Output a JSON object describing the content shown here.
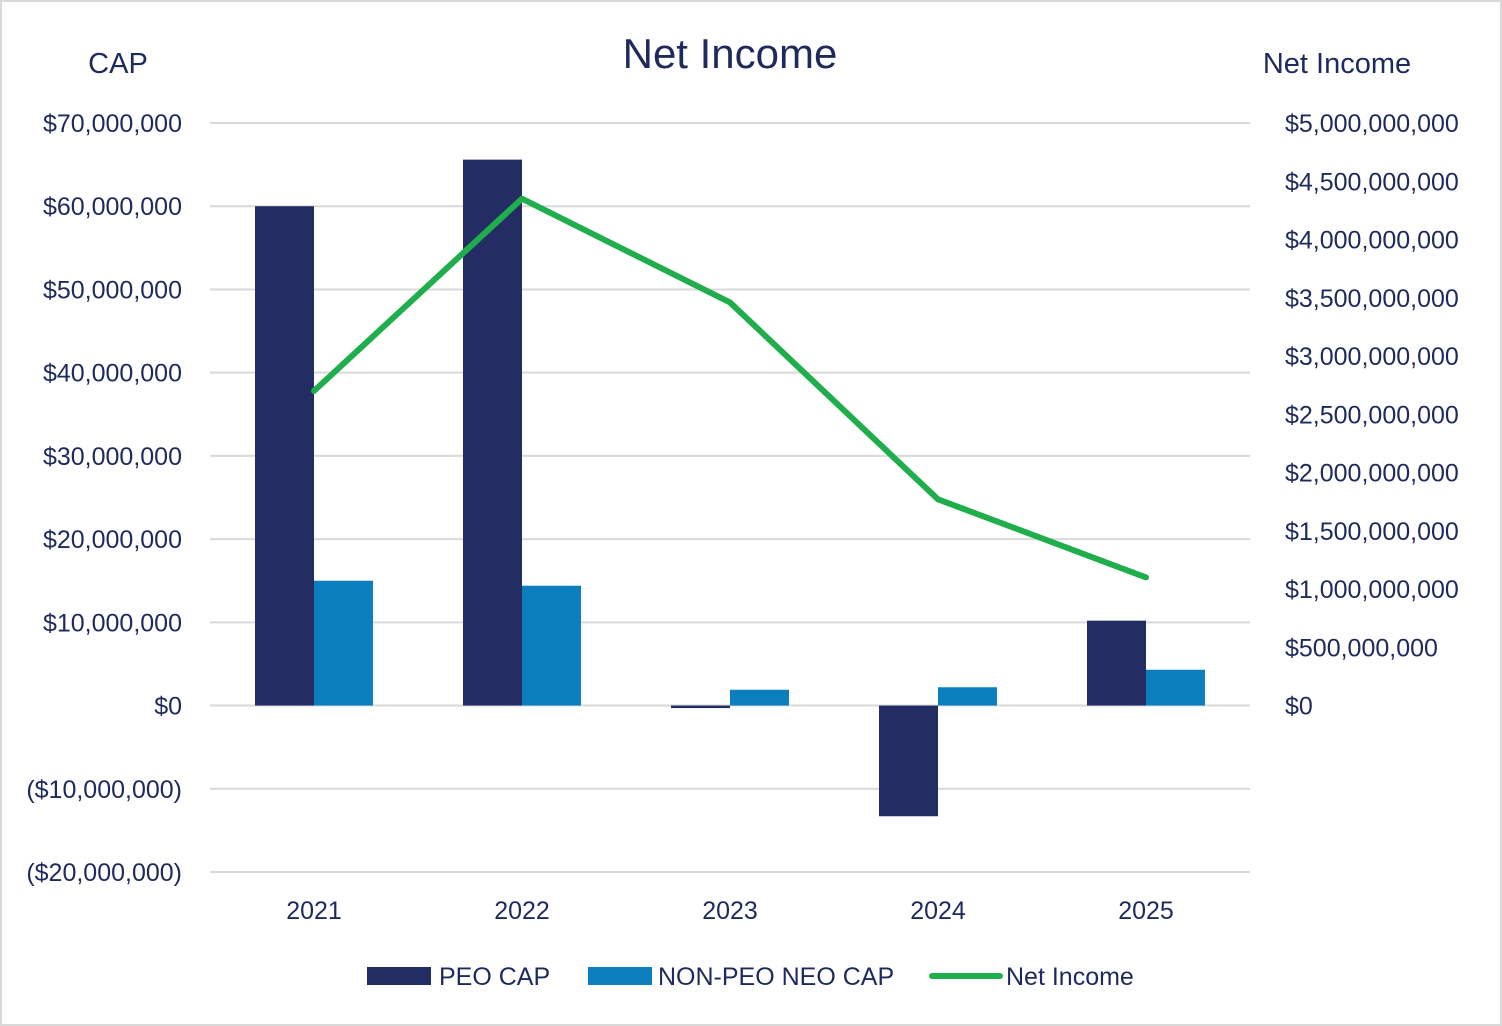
{
  "chart_data": {
    "type": "bar",
    "title": "Net Income",
    "xlabel": "",
    "ylabel": "CAP",
    "y2label": "Net Income",
    "categories": [
      "2021",
      "2022",
      "2023",
      "2024",
      "2025"
    ],
    "ylim": [
      -20000000,
      70000000
    ],
    "y2lim": [
      0,
      5000000000
    ],
    "yticks": [
      "$70,000,000",
      "$60,000,000",
      "$50,000,000",
      "$40,000,000",
      "$30,000,000",
      "$20,000,000",
      "$10,000,000",
      "$0",
      "($10,000,000)",
      "($20,000,000)"
    ],
    "y2ticks": [
      "$5,000,000,000",
      "$4,500,000,000",
      "$4,000,000,000",
      "$3,500,000,000",
      "$3,000,000,000",
      "$2,500,000,000",
      "$2,000,000,000",
      "$1,500,000,000",
      "$1,000,000,000",
      "$500,000,000",
      "$0"
    ],
    "grid": true,
    "legend_position": "bottom",
    "series": [
      {
        "name": "PEO CAP",
        "type": "bar",
        "axis": "left",
        "color": "#232d63",
        "values": [
          60000000,
          65600000,
          -300000,
          -13300000,
          10200000
        ]
      },
      {
        "name": "NON-PEO NEO CAP",
        "type": "bar",
        "axis": "left",
        "color": "#0b7fbd",
        "values": [
          15000000,
          14400000,
          1900000,
          2200000,
          4300000
        ]
      },
      {
        "name": "Net Income",
        "type": "line",
        "axis": "right",
        "color": "#1fae4b",
        "values": [
          2700000000,
          4350000000,
          3460000000,
          1770000000,
          1100000000
        ]
      }
    ]
  }
}
